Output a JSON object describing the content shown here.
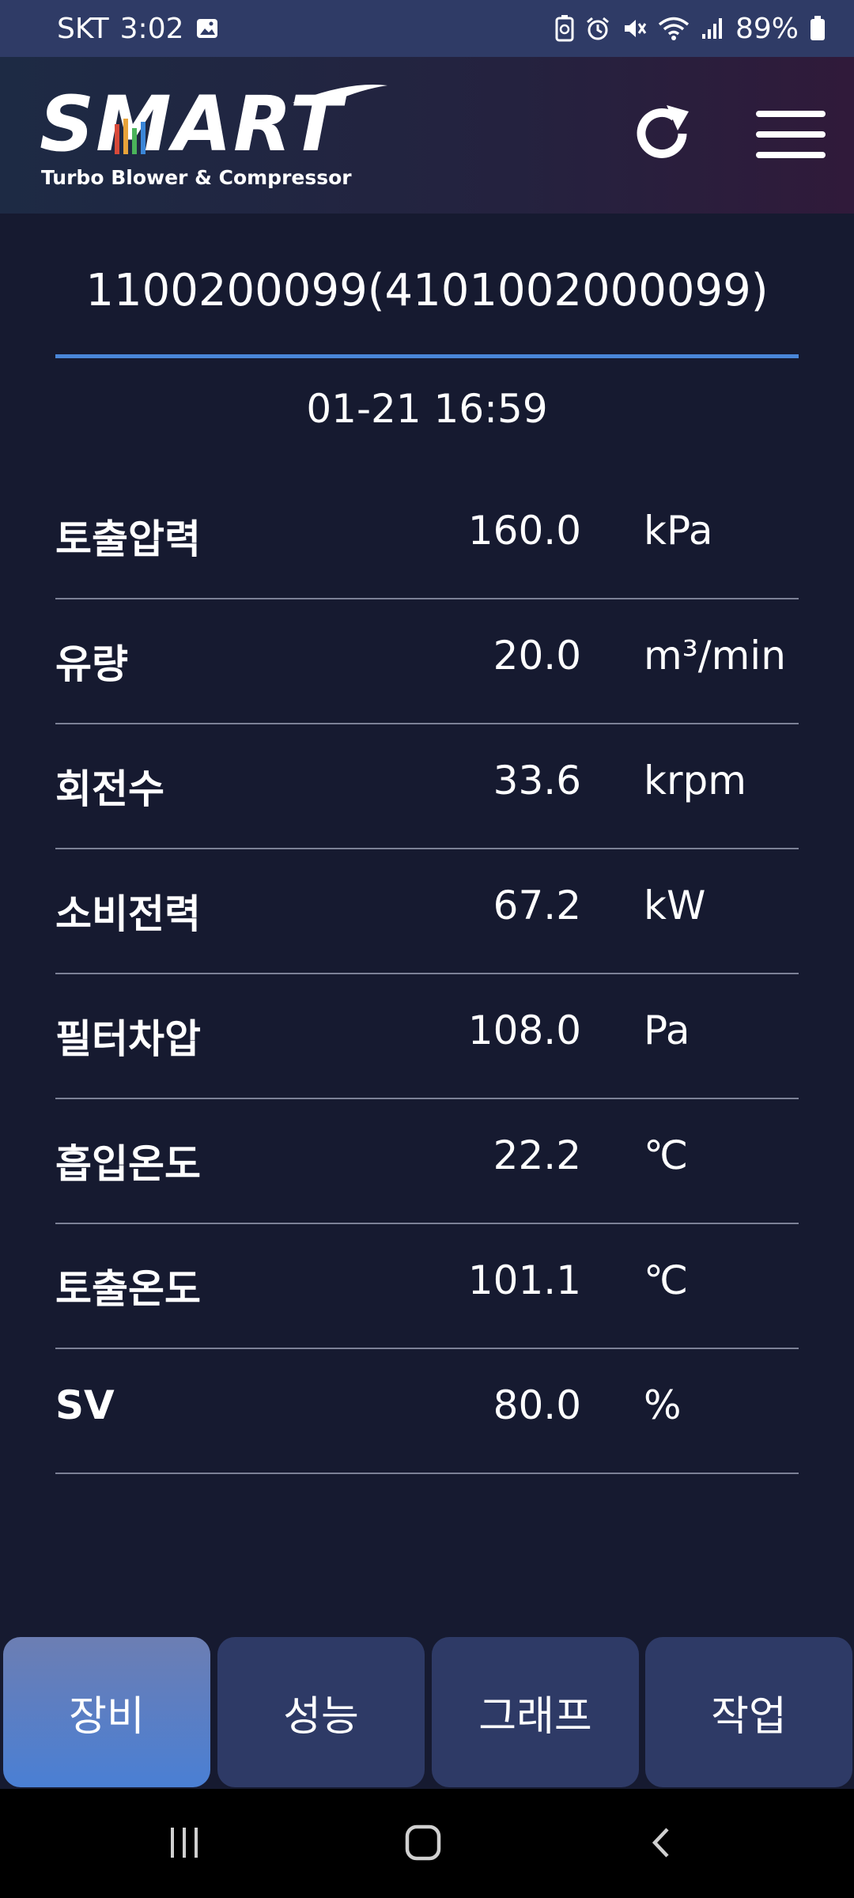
{
  "status_bar": {
    "carrier": "SKT",
    "time": "3:02",
    "battery_percent": "89%",
    "icons": [
      "gallery-icon",
      "battery-saver-icon",
      "alarm-icon",
      "mute-icon",
      "wifi-icon",
      "signal-icon",
      "battery-icon"
    ]
  },
  "header": {
    "logo_text": "SMART",
    "logo_subtitle": "Turbo Blower & Compressor",
    "refresh_icon": "refresh-icon",
    "menu_icon": "hamburger-menu-icon"
  },
  "device": {
    "id": "1100200099(4101002000099)",
    "timestamp": "01-21 16:59",
    "underline_color": "#4a86d8"
  },
  "metrics": [
    {
      "label": "토출압력",
      "value": "160.0",
      "unit": "kPa"
    },
    {
      "label": "유량",
      "value": "20.0",
      "unit": "m³/min"
    },
    {
      "label": "회전수",
      "value": "33.6",
      "unit": "krpm"
    },
    {
      "label": "소비전력",
      "value": "67.2",
      "unit": "kW"
    },
    {
      "label": "필터차압",
      "value": "108.0",
      "unit": "Pa"
    },
    {
      "label": "흡입온도",
      "value": "22.2",
      "unit": "℃"
    },
    {
      "label": "토출온도",
      "value": "101.1",
      "unit": "℃"
    },
    {
      "label": "SV",
      "value": "80.0",
      "unit": "%"
    }
  ],
  "tabs": [
    {
      "label": "장비",
      "active": true
    },
    {
      "label": "성능",
      "active": false
    },
    {
      "label": "그래프",
      "active": false
    },
    {
      "label": "작업",
      "active": false
    }
  ],
  "nav_bar": {
    "icons": [
      "recent-apps-icon",
      "home-icon",
      "back-icon"
    ]
  },
  "colors": {
    "background": "#161a30",
    "status_bar": "#2f3b66",
    "tab_inactive": "#2e3a66",
    "tab_active": "#4a7fd4",
    "divider": "#7c8196"
  }
}
